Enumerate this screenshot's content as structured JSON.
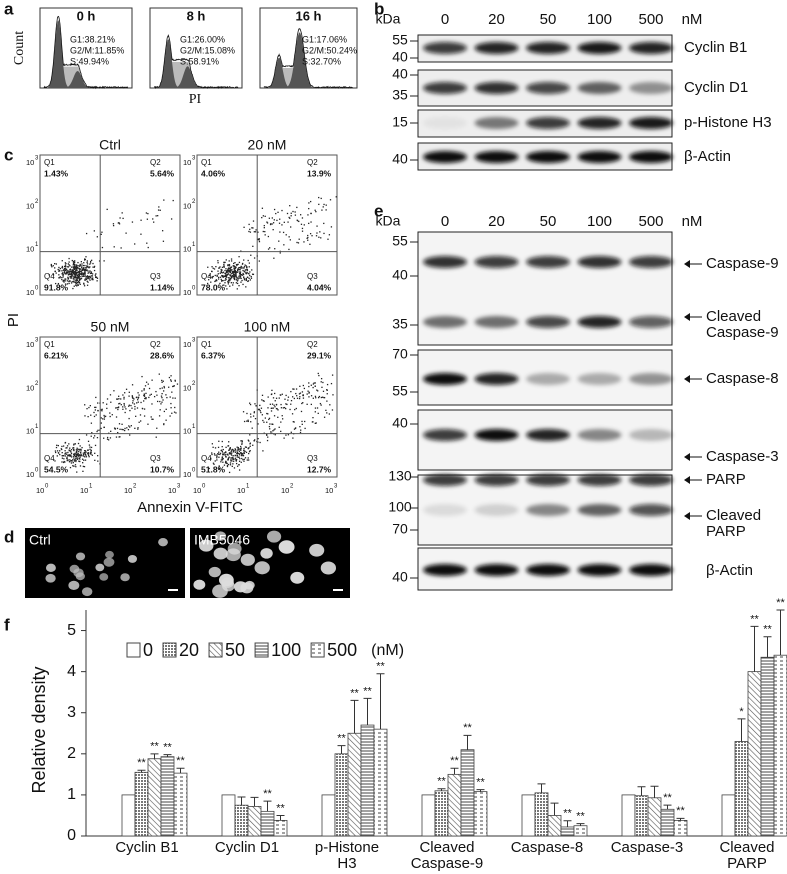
{
  "panel_a": {
    "label": "a",
    "y_label": "Count",
    "x_label": "PI",
    "plots": [
      {
        "title": "0 h",
        "stats": [
          "G1:38.21%",
          "G2/M:11.85%",
          "S:49.94%"
        ]
      },
      {
        "title": "8 h",
        "stats": [
          "G1:26.00%",
          "G2/M:15.08%",
          "S:58.91%"
        ]
      },
      {
        "title": "16 h",
        "stats": [
          "G1:17.06%",
          "G2/M:50.24%",
          "S:32.70%"
        ]
      }
    ]
  },
  "panel_b": {
    "label": "b",
    "kda": "kDa",
    "unit": "nM",
    "lanes": [
      "0",
      "20",
      "50",
      "100",
      "500"
    ],
    "blots": [
      {
        "markers": [
          "55",
          "40"
        ],
        "labels": [
          "Cyclin B1"
        ]
      },
      {
        "markers": [
          "40",
          "35"
        ],
        "labels": [
          "Cyclin D1"
        ]
      },
      {
        "markers": [
          "15"
        ],
        "labels": [
          "p-Histone H3"
        ]
      },
      {
        "markers": [
          "40"
        ],
        "labels": [
          "β-Actin"
        ]
      }
    ]
  },
  "panel_c": {
    "label": "c",
    "x_label": "Annexin V-FITC",
    "y_label": "PI",
    "tick_base": "10",
    "tick_exponents": [
      "0",
      "1",
      "2",
      "3"
    ],
    "plots": [
      {
        "title": "Ctrl",
        "quadrants": [
          {
            "name": "Q1",
            "value": "1.43%"
          },
          {
            "name": "Q2",
            "value": "5.64%"
          },
          {
            "name": "Q3",
            "value": "1.14%"
          },
          {
            "name": "Q4",
            "value": "91.8%"
          }
        ]
      },
      {
        "title": "20 nM",
        "quadrants": [
          {
            "name": "Q1",
            "value": "4.06%"
          },
          {
            "name": "Q2",
            "value": "13.9%"
          },
          {
            "name": "Q3",
            "value": "4.04%"
          },
          {
            "name": "Q4",
            "value": "78.0%"
          }
        ]
      },
      {
        "title": "50 nM",
        "quadrants": [
          {
            "name": "Q1",
            "value": "6.21%"
          },
          {
            "name": "Q2",
            "value": "28.6%"
          },
          {
            "name": "Q3",
            "value": "10.7%"
          },
          {
            "name": "Q4",
            "value": "54.5%"
          }
        ]
      },
      {
        "title": "100 nM",
        "quadrants": [
          {
            "name": "Q1",
            "value": "6.37%"
          },
          {
            "name": "Q2",
            "value": "29.1%"
          },
          {
            "name": "Q3",
            "value": "12.7%"
          },
          {
            "name": "Q4",
            "value": "51.8%"
          }
        ]
      }
    ]
  },
  "panel_d": {
    "label": "d",
    "images": [
      "Ctrl",
      "IMB5046"
    ]
  },
  "panel_e": {
    "label": "e",
    "kda": "kDa",
    "unit": "nM",
    "lanes": [
      "0",
      "20",
      "50",
      "100",
      "500"
    ],
    "blots": [
      {
        "markers": [
          "55",
          "40",
          "35"
        ],
        "labels": [
          "Caspase-9",
          "Cleaved Caspase-9"
        ]
      },
      {
        "markers": [
          "70",
          "55"
        ],
        "labels": [
          "Caspase-8"
        ]
      },
      {
        "markers": [
          "40"
        ],
        "labels": [
          "Caspase-3"
        ]
      },
      {
        "markers": [
          "130",
          "100",
          "70"
        ],
        "labels": [
          "PARP",
          "Cleaved PARP"
        ]
      },
      {
        "markers": [
          "40"
        ],
        "labels": [
          "β-Actin"
        ]
      }
    ]
  },
  "chart_data": {
    "type": "bar",
    "label": "f",
    "y_label": "Relative density",
    "legend_unit": "(nM)",
    "categories": [
      "Cyclin B1",
      "Cyclin D1",
      "p-Histone H3",
      "Cleaved Caspase-9",
      "Caspase-8",
      "Caspase-3",
      "Cleaved PARP"
    ],
    "ylim": [
      0,
      5.5
    ],
    "yticks": [
      0,
      1,
      2,
      3,
      4,
      5
    ],
    "series": [
      {
        "name": "0",
        "pattern": "none",
        "color": "#ffffff",
        "values": [
          1,
          1,
          1,
          1,
          1,
          1,
          1
        ],
        "errors": [
          0,
          0,
          0,
          0,
          0,
          0,
          0
        ],
        "annotations": [
          null,
          null,
          null,
          null,
          null,
          null,
          null
        ]
      },
      {
        "name": "20",
        "pattern": "crosshatch",
        "color": "#808080",
        "values": [
          1.55,
          0.75,
          2.0,
          1.1,
          1.05,
          0.98,
          2.3
        ],
        "errors": [
          0.05,
          0.2,
          0.2,
          0.05,
          0.22,
          0.22,
          0.55
        ],
        "annotations": [
          "**",
          null,
          "**",
          "**",
          null,
          null,
          "*"
        ]
      },
      {
        "name": "50",
        "pattern": "diagonal",
        "color": "#808080",
        "values": [
          1.88,
          0.72,
          2.5,
          1.5,
          0.5,
          0.93,
          4.0
        ],
        "errors": [
          0.12,
          0.22,
          0.8,
          0.15,
          0.3,
          0.28,
          1.1
        ],
        "annotations": [
          "**",
          null,
          "**",
          "**",
          null,
          null,
          "**"
        ]
      },
      {
        "name": "100",
        "pattern": "horizontal",
        "color": "#808080",
        "values": [
          1.93,
          0.6,
          2.7,
          2.1,
          0.22,
          0.65,
          4.35
        ],
        "errors": [
          0.05,
          0.25,
          0.65,
          0.35,
          0.15,
          0.1,
          0.5
        ],
        "annotations": [
          "**",
          "**",
          "**",
          "**",
          "**",
          "**",
          "**"
        ]
      },
      {
        "name": "500",
        "pattern": "dashed",
        "color": "#808080",
        "values": [
          1.53,
          0.38,
          2.6,
          1.08,
          0.25,
          0.38,
          4.4
        ],
        "errors": [
          0.12,
          0.12,
          1.35,
          0.05,
          0.05,
          0.05,
          1.1
        ],
        "annotations": [
          "**",
          "**",
          "**",
          "**",
          "**",
          "**",
          "**"
        ]
      }
    ]
  }
}
